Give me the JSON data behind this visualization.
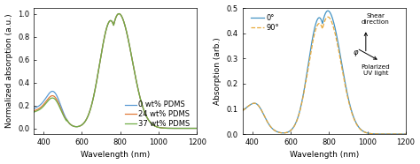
{
  "left": {
    "xlabel": "Wavelength (nm)",
    "ylabel": "Normalized absorption (a.u.)",
    "xlim": [
      350,
      1200
    ],
    "ylim": [
      -0.05,
      1.05
    ],
    "xticks": [
      400,
      600,
      800,
      1000,
      1200
    ],
    "yticks": [
      0.0,
      0.2,
      0.4,
      0.6,
      0.8,
      1.0
    ],
    "legend": [
      "0 wt% PDMS",
      "24 wt% PDMS",
      "37 wt% PDMS"
    ],
    "colors": [
      "#5b9bd5",
      "#e07b39",
      "#70ad47"
    ],
    "curve_shape": "polymer_uv_vis"
  },
  "right": {
    "xlabel": "Wavelength (nm)",
    "ylabel": "Absorption (arb.)",
    "xlim": [
      350,
      1200
    ],
    "ylim": [
      0.0,
      0.5
    ],
    "xticks": [
      400,
      600,
      800,
      1000,
      1200
    ],
    "yticks": [
      0.0,
      0.1,
      0.2,
      0.3,
      0.4,
      0.5
    ],
    "legend": [
      "0°",
      "90°"
    ],
    "line_styles": [
      "-",
      "--"
    ],
    "colors": [
      "#4393c3",
      "#e8a838"
    ],
    "annotation_text": "Shear\ndirection",
    "annotation2_text": "Polarized\nUV light",
    "phi_label": "φ",
    "curve_shape": "polarized_uv_vis"
  },
  "figure": {
    "bg_color": "#ffffff",
    "tick_fontsize": 6,
    "label_fontsize": 6.5,
    "legend_fontsize": 6
  }
}
